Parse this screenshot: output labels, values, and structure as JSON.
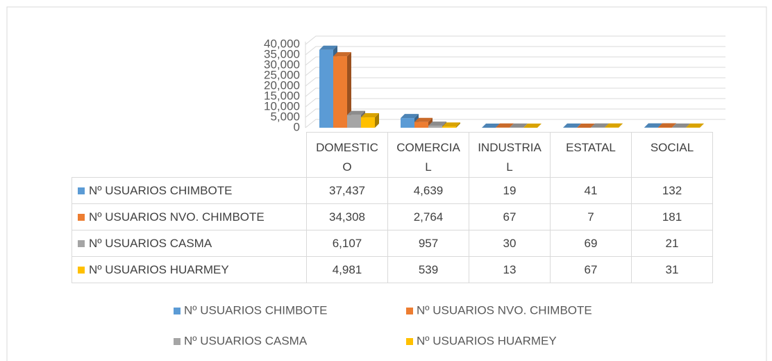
{
  "chart_data": {
    "type": "bar3d",
    "categories": [
      "DOMESTICO",
      "COMERCIAL",
      "INDUSTRIAL",
      "ESTATAL",
      "SOCIAL"
    ],
    "series": [
      {
        "name": "Nº USUARIOS CHIMBOTE",
        "color": "#5b9bd5",
        "values": [
          37437,
          4639,
          19,
          41,
          132
        ],
        "value_labels": [
          "37,437",
          "4,639",
          "19",
          "41",
          "132"
        ]
      },
      {
        "name": "Nº USUARIOS NVO. CHIMBOTE",
        "color": "#ed7d31",
        "values": [
          34308,
          2764,
          67,
          7,
          181
        ],
        "value_labels": [
          "34,308",
          "2,764",
          "67",
          "7",
          "181"
        ]
      },
      {
        "name": "Nº USUARIOS CASMA",
        "color": "#a5a5a5",
        "values": [
          6107,
          957,
          30,
          69,
          21
        ],
        "value_labels": [
          "6,107",
          "957",
          "30",
          "69",
          "21"
        ]
      },
      {
        "name": "Nº USUARIOS HUARMEY",
        "color": "#ffc000",
        "values": [
          4981,
          539,
          13,
          67,
          31
        ],
        "value_labels": [
          "4,981",
          "539",
          "13",
          "67",
          "31"
        ]
      }
    ],
    "ylim": [
      0,
      40000
    ],
    "yticks": [
      0,
      {
        "value": 5000,
        "label": "5,000"
      },
      {
        "value": 10000,
        "label": "10,000"
      },
      {
        "value": 15000,
        "label": "15,000"
      },
      {
        "value": 20000,
        "label": "20,000"
      },
      {
        "value": 25000,
        "label": "25,000"
      },
      {
        "value": 30000,
        "label": "30,000"
      },
      {
        "value": 35000,
        "label": "35,000"
      },
      {
        "value": 40000,
        "label": "40,000"
      }
    ],
    "grid": true,
    "legend": "bottom"
  }
}
